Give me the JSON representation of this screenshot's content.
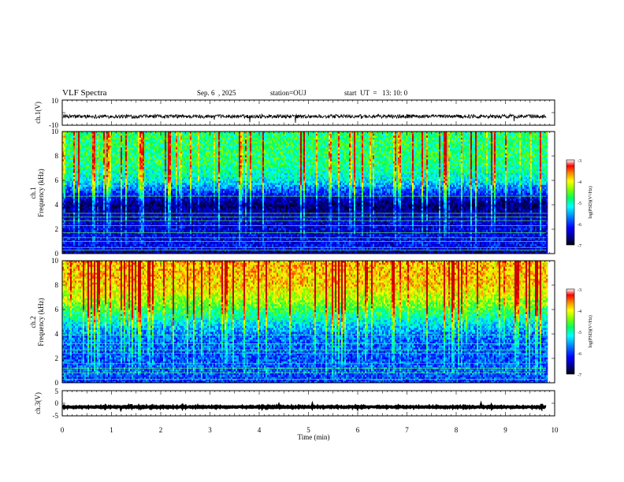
{
  "header": {
    "title": "VLF Spectra",
    "date": "Sep. 6  , 2025",
    "station": "station=OUJ",
    "start": "start  UT  =   13: 10: 0"
  },
  "chart_data": [
    {
      "type": "line",
      "name_id": "ch1-waveform",
      "ylabel": "ch.1(V)",
      "ylim": [
        -10,
        10
      ],
      "yticks": [
        "10",
        "-10"
      ],
      "xlim": [
        0,
        10
      ],
      "baseline": -3,
      "amplitude_typical": 1.5,
      "spike_max": -10
    },
    {
      "type": "heatmap",
      "name_id": "ch1-spectrogram",
      "ylabel": "ch.1\nFrequency (kHz)",
      "ylabel_lines": [
        "ch.1",
        "Frequency (kHz)"
      ],
      "ylim": [
        0,
        10
      ],
      "yticks": [
        "0",
        "2",
        "4",
        "6",
        "8",
        "10"
      ],
      "xlim": [
        0,
        9.83
      ],
      "colorbar": {
        "label": "log(PSD)(V²/Hz)",
        "range": [
          -7,
          -3
        ],
        "ticks": [
          "-3",
          "-4",
          "-5",
          "-6",
          "-7"
        ]
      },
      "mean_log_psd_by_freq": [
        {
          "f": 0,
          "v": -6.6
        },
        {
          "f": 0.5,
          "v": -6.2
        },
        {
          "f": 1.5,
          "v": -6.3
        },
        {
          "f": 3.0,
          "v": -6.4
        },
        {
          "f": 4.0,
          "v": -6.8
        },
        {
          "f": 5.0,
          "v": -6.0
        },
        {
          "f": 6.0,
          "v": -5.2
        },
        {
          "f": 7.5,
          "v": -4.8
        },
        {
          "f": 10,
          "v": -4.8
        }
      ],
      "persistent_lines_khz": [
        0.3,
        0.5,
        1.0,
        1.3,
        1.7,
        2.3,
        2.7,
        3.0,
        3.3,
        4.7
      ]
    },
    {
      "type": "heatmap",
      "name_id": "ch2-spectrogram",
      "ylabel": "ch.2\nFrequency (kHz)",
      "ylabel_lines": [
        "ch.2",
        "Frequency (kHz)"
      ],
      "ylim": [
        0,
        10
      ],
      "yticks": [
        "0",
        "2",
        "4",
        "6",
        "8",
        "10"
      ],
      "xlim": [
        0,
        9.83
      ],
      "colorbar": {
        "label": "log(PSD)(V²/Hz)",
        "range": [
          -7,
          -3
        ],
        "ticks": [
          "-3",
          "-4",
          "-5",
          "-6",
          "-7"
        ]
      },
      "mean_log_psd_by_freq": [
        {
          "f": 0,
          "v": -6.0
        },
        {
          "f": 1.0,
          "v": -5.8
        },
        {
          "f": 2.0,
          "v": -5.9
        },
        {
          "f": 4.0,
          "v": -5.7
        },
        {
          "f": 5.0,
          "v": -5.2
        },
        {
          "f": 6.5,
          "v": -4.4
        },
        {
          "f": 8.0,
          "v": -3.9
        },
        {
          "f": 10,
          "v": -3.8
        }
      ],
      "persistent_lines_khz": [
        0.3,
        0.8,
        1.2,
        1.6,
        2.4,
        2.7,
        3.2,
        3.9
      ]
    },
    {
      "type": "line",
      "name_id": "ch3-waveform",
      "ylabel": "ch.3(V)",
      "ylim": [
        -5,
        5
      ],
      "yticks": [
        "5",
        "0",
        "-5"
      ],
      "xlim": [
        0,
        10
      ],
      "baseline": -1.5,
      "amplitude_typical": 0.2,
      "spike_max": 0
    }
  ],
  "xaxis": {
    "label": "Time  (min)",
    "ticks": [
      "0",
      "1",
      "2",
      "3",
      "4",
      "5",
      "6",
      "7",
      "8",
      "9",
      "10"
    ],
    "range": [
      0,
      10
    ]
  },
  "colormap": [
    "#000080",
    "#0000ff",
    "#0080ff",
    "#00ffff",
    "#00ff80",
    "#80ff00",
    "#ffff00",
    "#ff8000",
    "#ff0000",
    "#b00000"
  ]
}
